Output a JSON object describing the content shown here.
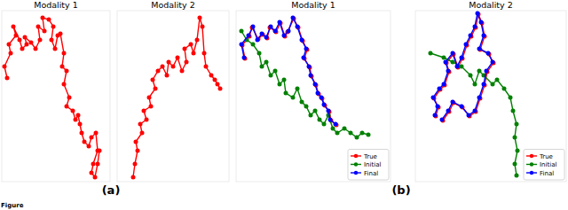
{
  "chart_data": [
    {
      "type": "line",
      "title": "Modality 1",
      "marker": "circle",
      "line_style": "solid",
      "tick_labels": false,
      "xlim": [
        2,
        124
      ],
      "ylim": [
        205,
        12
      ],
      "series": [
        {
          "color": "#ff0000",
          "x": [
            8,
            5,
            12,
            10,
            18,
            15,
            22,
            25,
            30,
            28,
            35,
            40,
            45,
            43,
            50,
            48,
            55,
            60,
            58,
            62,
            65,
            68,
            72,
            70,
            75,
            72,
            78,
            75,
            82,
            85,
            88,
            90,
            92,
            95,
            100,
            103,
            108,
            110,
            105,
            103,
            107,
            110,
            112
          ],
          "values": [
            88,
            75,
            60,
            50,
            40,
            30,
            45,
            55,
            50,
            42,
            48,
            55,
            45,
            30,
            35,
            20,
            22,
            30,
            45,
            55,
            40,
            38,
            60,
            75,
            80,
            95,
            110,
            120,
            125,
            135,
            130,
            140,
            150,
            160,
            165,
            155,
            150,
            170,
            185,
            195,
            200,
            185,
            170
          ]
        }
      ]
    },
    {
      "type": "line",
      "title": "Modality 2",
      "marker": "circle",
      "line_style": "solid",
      "tick_labels": false,
      "xlim": [
        132,
        258
      ],
      "ylim": [
        205,
        12
      ],
      "series": [
        {
          "color": "#ff0000",
          "x": [
            150,
            152,
            155,
            153,
            160,
            158,
            165,
            162,
            170,
            168,
            175,
            172,
            178,
            183,
            188,
            190,
            195,
            200,
            205,
            210,
            208,
            215,
            218,
            222,
            225,
            228,
            230,
            232,
            238,
            242,
            245,
            248
          ],
          "values": [
            200,
            185,
            170,
            160,
            150,
            140,
            135,
            125,
            120,
            110,
            100,
            90,
            80,
            75,
            85,
            70,
            75,
            65,
            80,
            70,
            55,
            50,
            60,
            45,
            20,
            30,
            60,
            75,
            85,
            90,
            95,
            100
          ]
        }
      ]
    },
    {
      "type": "line",
      "title": "Modality 1",
      "marker": "circle",
      "line_style": "solid",
      "tick_labels": false,
      "legend": "lower right",
      "xlim": [
        266,
        440
      ],
      "ylim": [
        205,
        12
      ],
      "series": [
        {
          "name": "True",
          "color": "#ff0000",
          "x": [
            276,
            273,
            281,
            284,
            291,
            296,
            301,
            304,
            311,
            316,
            321,
            324,
            331,
            336,
            341,
            346,
            343,
            349,
            351,
            356,
            359,
            363,
            366,
            371,
            373,
            379
          ],
          "values": [
            66,
            51,
            41,
            31,
            44,
            39,
            43,
            31,
            36,
            26,
            41,
            36,
            21,
            31,
            46,
            56,
            66,
            76,
            86,
            96,
            106,
            111,
            119,
            126,
            136,
            141
          ]
        },
        {
          "name": "Initial",
          "color": "#008000",
          "x": [
            272,
            278,
            285,
            292,
            295,
            300,
            305,
            310,
            315,
            320,
            322,
            330,
            335,
            340,
            345,
            350,
            355,
            360,
            365,
            370,
            375,
            380,
            388,
            395,
            402,
            408,
            415
          ],
          "values": [
            35,
            45,
            50,
            60,
            75,
            70,
            85,
            80,
            95,
            90,
            105,
            110,
            100,
            115,
            120,
            130,
            125,
            135,
            140,
            130,
            145,
            150,
            145,
            150,
            155,
            150,
            152
          ]
        },
        {
          "name": "Final",
          "color": "#0000ff",
          "x": [
            275,
            272,
            280,
            285,
            290,
            295,
            300,
            305,
            310,
            315,
            320,
            325,
            330,
            335,
            340,
            345,
            342,
            348,
            350,
            355,
            358,
            362,
            365,
            370,
            372,
            378
          ],
          "values": [
            65,
            50,
            40,
            30,
            45,
            38,
            42,
            30,
            35,
            25,
            40,
            35,
            20,
            30,
            45,
            55,
            65,
            75,
            85,
            95,
            105,
            110,
            118,
            125,
            135,
            140
          ]
        }
      ]
    },
    {
      "type": "line",
      "title": "Modality 2",
      "marker": "circle",
      "line_style": "solid",
      "tick_labels": false,
      "legend": "lower right",
      "xlim": [
        468,
        638
      ],
      "ylim": [
        205,
        12
      ],
      "series": [
        {
          "name": "True",
          "color": "#ff0000",
          "x": [
            491,
            494,
            489,
            496,
            501,
            506,
            503,
            511,
            516,
            521,
            526,
            531,
            536,
            539,
            543,
            546,
            541,
            551,
            556,
            549,
            546,
            541,
            536,
            529,
            521,
            511,
            506,
            499
          ],
          "values": [
            131,
            121,
            111,
            101,
            96,
            81,
            71,
            61,
            76,
            66,
            51,
            41,
            31,
            16,
            26,
            41,
            56,
            61,
            71,
            81,
            96,
            111,
            126,
            131,
            121,
            116,
            126,
            136
          ]
        },
        {
          "name": "Initial",
          "color": "#008000",
          "x": [
            485,
            500,
            510,
            520,
            530,
            535,
            540,
            545,
            555,
            560,
            568,
            575,
            578,
            582,
            580,
            583,
            580,
            582
          ],
          "values": [
            60,
            65,
            70,
            75,
            85,
            95,
            80,
            85,
            95,
            90,
            100,
            110,
            125,
            140,
            155,
            170,
            185,
            198
          ]
        },
        {
          "name": "Final",
          "color": "#0000ff",
          "x": [
            490,
            493,
            488,
            495,
            500,
            505,
            502,
            510,
            515,
            520,
            525,
            530,
            535,
            538,
            542,
            545,
            540,
            550,
            555,
            548,
            545,
            540,
            535,
            528,
            520,
            510,
            505,
            498
          ],
          "values": [
            130,
            120,
            110,
            100,
            95,
            80,
            70,
            60,
            75,
            65,
            50,
            40,
            30,
            15,
            25,
            40,
            55,
            60,
            70,
            80,
            95,
            110,
            125,
            130,
            120,
            115,
            125,
            135
          ]
        }
      ]
    }
  ],
  "panel_labels": [
    "(a)",
    "(b)"
  ],
  "caption": "Figure"
}
